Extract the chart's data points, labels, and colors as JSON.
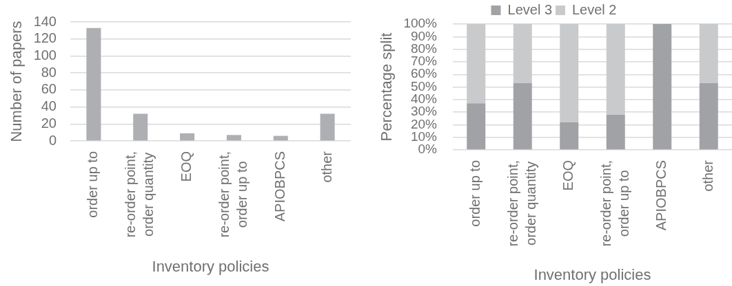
{
  "chart_data": [
    {
      "type": "bar",
      "xlabel": "Inventory policies",
      "ylabel": "Number of papers",
      "categories": [
        "order up to",
        "re-order point, order quantity",
        "EOQ",
        "re-order point, order up to",
        "APIOBPCS",
        "other"
      ],
      "values": [
        133,
        32,
        9,
        7,
        6,
        32
      ],
      "color": "#adafb2",
      "ylim": [
        0,
        140
      ],
      "yticks": [
        0,
        20,
        40,
        60,
        80,
        100,
        120,
        140
      ],
      "grid": "y"
    },
    {
      "type": "bar",
      "stacked": true,
      "xlabel": "Inventory policies",
      "ylabel": "Percentage split",
      "categories": [
        "order up to",
        "re-order point, order quantity",
        "EOQ",
        "re-order point, order up to",
        "APIOBPCS",
        "other"
      ],
      "series": [
        {
          "name": "Level 3",
          "color": "#a1a2a5",
          "values": [
            37,
            53,
            22,
            28,
            100,
            53
          ]
        },
        {
          "name": "Level 2",
          "color": "#c9cacc",
          "values": [
            63,
            47,
            78,
            72,
            0,
            47
          ]
        }
      ],
      "ylim": [
        0,
        100
      ],
      "yticks": [
        {
          "value": 0,
          "label": "0%"
        },
        {
          "value": 10,
          "label": "10%"
        },
        {
          "value": 20,
          "label": "20%"
        },
        {
          "value": 30,
          "label": "30%"
        },
        {
          "value": 40,
          "label": "40%"
        },
        {
          "value": 50,
          "label": "50%"
        },
        {
          "value": 60,
          "label": "60%"
        },
        {
          "value": 70,
          "label": "70%"
        },
        {
          "value": 80,
          "label": "80%"
        },
        {
          "value": 90,
          "label": "90%"
        },
        {
          "value": 100,
          "label": "100%"
        }
      ],
      "grid": "y",
      "legend": "top"
    }
  ]
}
